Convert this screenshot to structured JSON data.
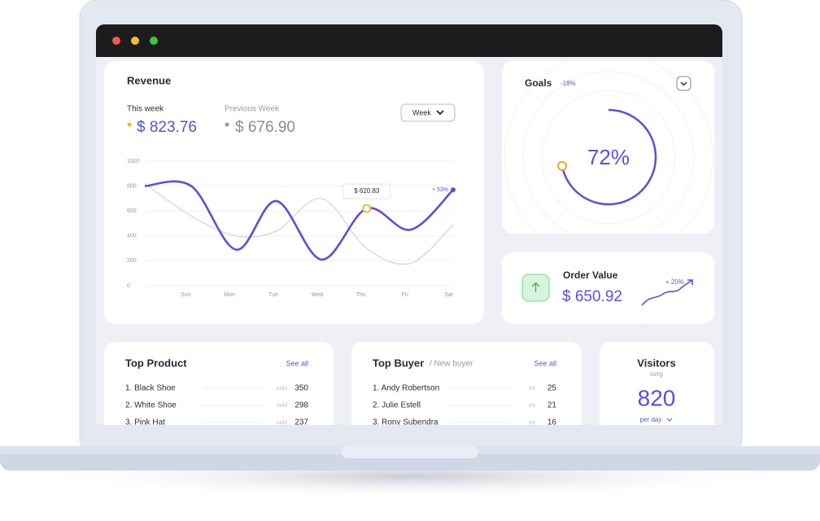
{
  "revenue": {
    "title": "Revenue",
    "this_week_label": "This week",
    "this_week_value": "$ 823.76",
    "previous_week_label": "Previous Week",
    "previous_week_value": "$ 676.90",
    "period_select": "Week",
    "chart": {
      "type": "line",
      "categories": [
        "Sun",
        "Mon",
        "Tue",
        "Wed",
        "Thu",
        "Fri",
        "Sat"
      ],
      "x": [
        -0.93,
        0.13,
        1.15,
        2.07,
        3.1,
        4.13,
        5.13,
        6.1
      ],
      "xlim": [
        -0.93,
        6.1
      ],
      "ylim": [
        0,
        1000
      ],
      "yticks": [
        0,
        200,
        400,
        600,
        800,
        1000
      ],
      "grid": true,
      "series": [
        {
          "name": "This week",
          "color": "#5b4fdb",
          "values": [
            800,
            800,
            290,
            680,
            210,
            620,
            450,
            770
          ]
        },
        {
          "name": "Previous Week",
          "color": "#d9d9df",
          "values": [
            820,
            560,
            400,
            440,
            700,
            300,
            180,
            490
          ]
        }
      ],
      "tooltip": "$ 620.83",
      "change_badge": "+ 53%"
    }
  },
  "goals": {
    "title": "Goals",
    "change": "-18%",
    "value": 72,
    "label": "72%"
  },
  "order_value": {
    "title": "Order Value",
    "value": "$ 650.92",
    "change": "+ 20%"
  },
  "top_product": {
    "title": "Top Product",
    "see_all": "See all",
    "rows": [
      {
        "name": "1. Black Shoe",
        "unit": "sold",
        "value": 350
      },
      {
        "name": "2. White Shoe",
        "unit": "sold",
        "value": 298
      },
      {
        "name": "3. Pink Hat",
        "unit": "sold",
        "value": 237
      }
    ]
  },
  "top_buyer": {
    "title": "Top Buyer",
    "subtitle": "/ New buyer",
    "see_all": "See all",
    "rows": [
      {
        "name": "1. Andy Robertson",
        "unit": "trs",
        "value": 25
      },
      {
        "name": "2. Julie Estell",
        "unit": "trs",
        "value": 21
      },
      {
        "name": "3. Rony Subendra",
        "unit": "trs",
        "value": 16
      }
    ]
  },
  "visitors": {
    "title": "Visitors",
    "subtitle": "ovrg",
    "value": 820,
    "period": "per day"
  }
}
